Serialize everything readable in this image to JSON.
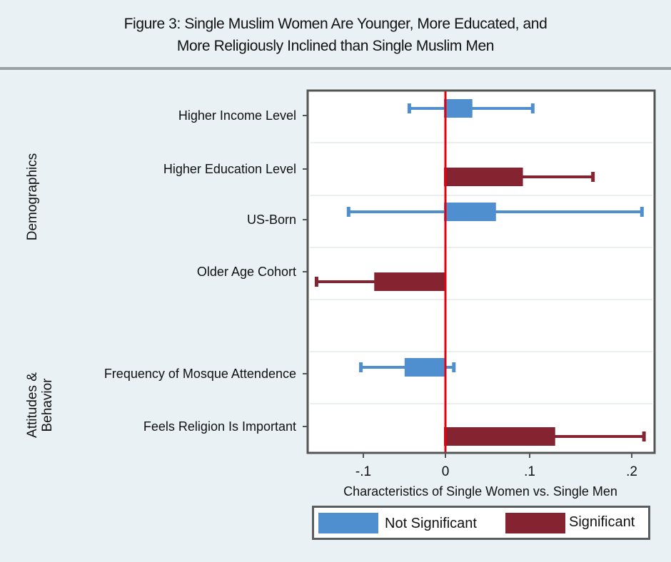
{
  "chart_data": {
    "type": "bar",
    "title": "Figure 3: Single Muslim Women Are Younger, More Educated, and More Religiously Inclined than Single Muslim Men",
    "title_lines": [
      "Figure 3: Single Muslim Women Are Younger, More Educated, and",
      "More Religiously Inclined than Single Muslim Men"
    ],
    "orientation": "horizontal",
    "xlabel": "Characteristics of Single Women vs. Single Men",
    "xticks": [
      -0.1,
      0,
      0.1,
      0.2
    ],
    "xtick_labels": [
      "-.1",
      "0",
      ".1",
      ".2"
    ],
    "xlim": [
      -0.16,
      0.22
    ],
    "reference_line": 0,
    "groups": [
      {
        "label": "Demographics",
        "label_lines": [
          "Demographics"
        ]
      },
      {
        "label": "Attitudes & Behavior",
        "label_lines": [
          "Attitudes &",
          "Behavior"
        ]
      }
    ],
    "categories": [
      "Higher Income Level",
      "Higher Education Level",
      "US-Born",
      "Older Age Cohort",
      "Frequency of Mosque Attendence",
      "Feels Religion Is Important"
    ],
    "items": [
      {
        "label": "Higher Income Level",
        "group": "Demographics",
        "estimate": 0.032,
        "ci_low": -0.044,
        "ci_high": 0.103,
        "significant": false
      },
      {
        "label": "Higher Education Level",
        "group": "Demographics",
        "estimate": 0.092,
        "ci_low": null,
        "ci_high": 0.162,
        "significant": true
      },
      {
        "label": "US-Born",
        "group": "Demographics",
        "estimate": 0.06,
        "ci_low": -0.118,
        "ci_high": 0.21,
        "significant": false
      },
      {
        "label": "Older Age Cohort",
        "group": "Demographics",
        "estimate": -0.085,
        "ci_low": -0.157,
        "ci_high": null,
        "significant": true
      },
      {
        "label": "Frequency of Mosque Attendence",
        "group": "Attitudes & Behavior",
        "estimate": -0.048,
        "ci_low": -0.103,
        "ci_high": 0.01,
        "significant": false
      },
      {
        "label": "Feels Religion Is Important",
        "group": "Attitudes & Behavior",
        "estimate": 0.125,
        "ci_low": null,
        "ci_high": 0.212,
        "significant": true
      }
    ],
    "legend": {
      "placement": "bottom",
      "entries": [
        {
          "label": "Not Significant",
          "color": "#4f8fcf"
        },
        {
          "label": "Significant",
          "color": "#862331"
        }
      ]
    },
    "grid": true,
    "colors": {
      "not_significant": "#4f8fcf",
      "significant": "#862331",
      "reference_line": "#e3000f"
    }
  }
}
